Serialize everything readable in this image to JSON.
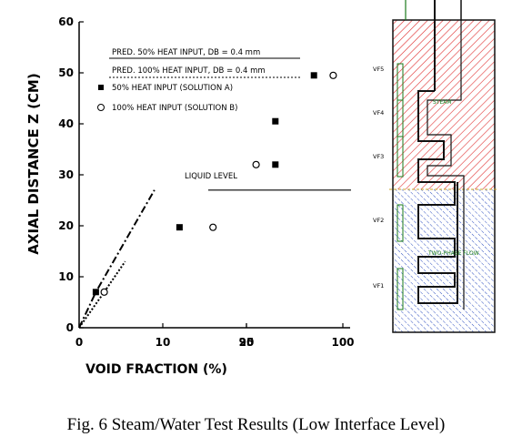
{
  "caption": "Fig. 6   Steam/Water Test Results (Low Interface Level)",
  "chart_data": {
    "type": "scatter",
    "title": "",
    "xlabel": "VOID FRACTION (%)",
    "ylabel": "AXIAL DISTANCE Z (CM)",
    "ylim": [
      0,
      60
    ],
    "y_ticks": [
      "0",
      "10",
      "20",
      "30",
      "40",
      "50",
      "60"
    ],
    "x_ticks": [
      "0",
      "10",
      "20",
      "95",
      "100"
    ],
    "x_axis_note": "broken axis: 0–20 then 95–100",
    "annotations": [
      "LIQUID LEVEL"
    ],
    "series": [
      {
        "name": "PRED. 50% HEAT INPUT, DB = 0.4 mm",
        "kind": "line",
        "style": "dash-dot",
        "points": [
          [
            0,
            0
          ],
          [
            2,
            7
          ],
          [
            9,
            27
          ]
        ]
      },
      {
        "name": "PRED. 100% HEAT INPUT, DB = 0.4 mm",
        "kind": "line",
        "style": "dotted",
        "points": [
          [
            0,
            0
          ],
          [
            3,
            7
          ],
          [
            5.5,
            13
          ]
        ]
      },
      {
        "name": "50% HEAT INPUT (SOLUTION A)",
        "kind": "marker",
        "marker": "filled-square",
        "points": [
          [
            2,
            7
          ],
          [
            12,
            19.7
          ],
          [
            96.5,
            32
          ],
          [
            96.5,
            40.5
          ],
          [
            98.5,
            49.5
          ]
        ]
      },
      {
        "name": "100% HEAT INPUT (SOLUTION B)",
        "kind": "marker",
        "marker": "open-circle",
        "points": [
          [
            3,
            7
          ],
          [
            16,
            19.7
          ],
          [
            95.5,
            32
          ],
          [
            99.5,
            49.5
          ]
        ]
      }
    ],
    "liquid_level_z": 27
  },
  "schematic": {
    "labels": [
      "VF5",
      "VF4",
      "VF3",
      "VF2",
      "VF1"
    ],
    "steam_label": "STEAM",
    "two_phase_label": "TWO-PHASE FLOW",
    "colors": {
      "steam": "#e03030",
      "two_phase": "#3050c0",
      "tube": "#111111"
    }
  }
}
